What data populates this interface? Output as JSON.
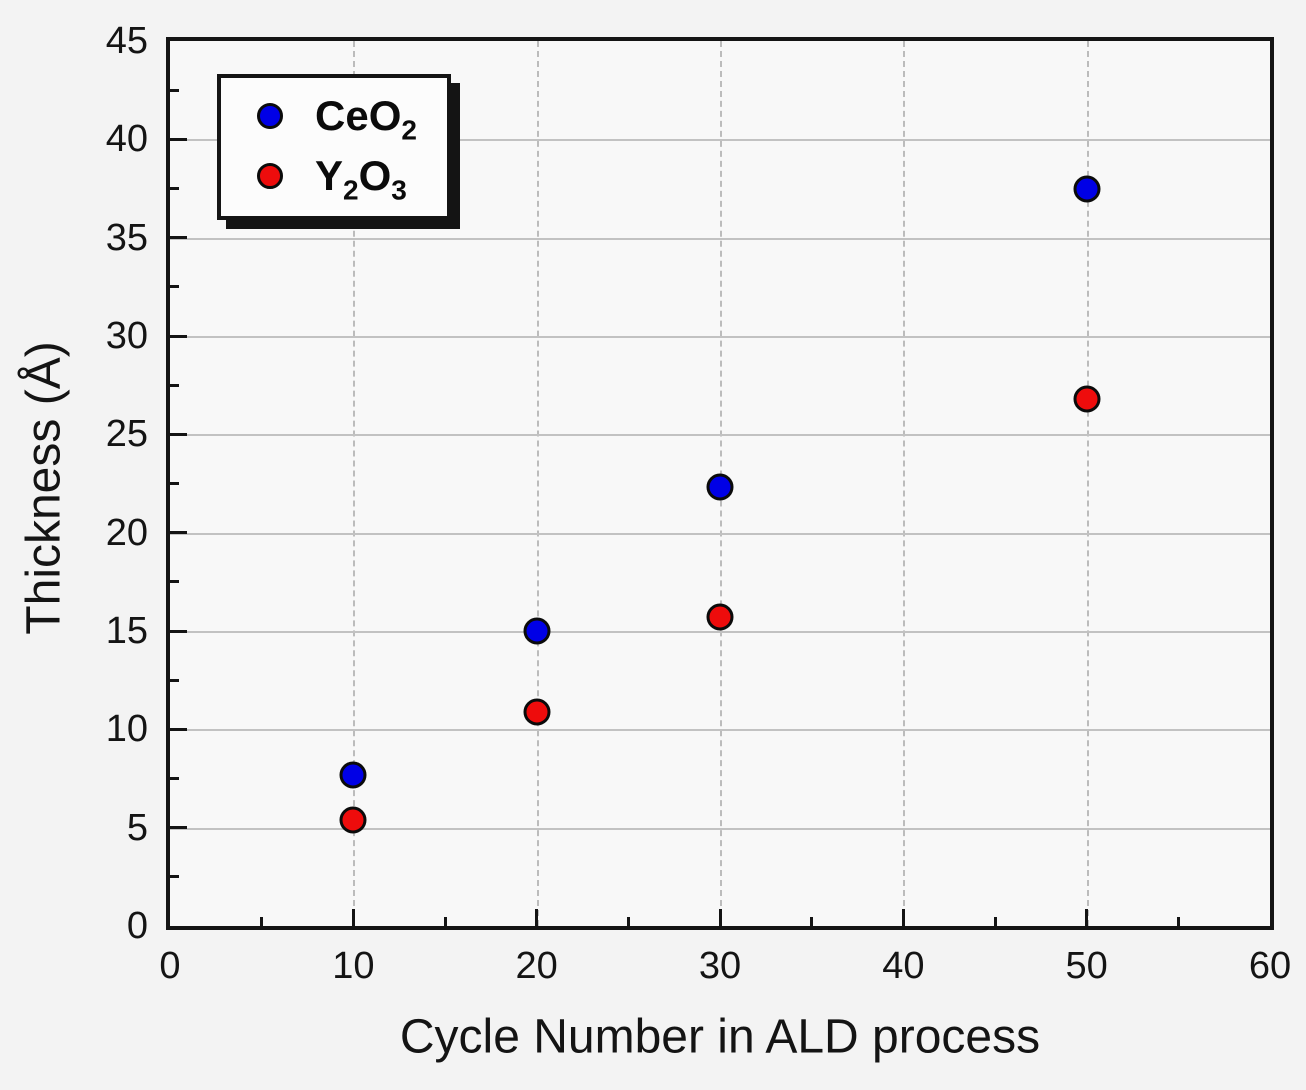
{
  "chart_data": {
    "type": "scatter",
    "title": "",
    "xlabel": "Cycle Number in ALD process",
    "ylabel": "Thickness (Å)",
    "xlim": [
      0,
      60
    ],
    "ylim": [
      0,
      45
    ],
    "x_major_step": 10,
    "x_minor_step": 5,
    "y_major_step": 5,
    "y_minor_step": 2.5,
    "grid": {
      "vertical_style": "dashed",
      "horizontal_style": "solid",
      "color": "#bcbcbc"
    },
    "legend": {
      "position": "top-left",
      "background": "#fcfcfc",
      "border_color": "#141414",
      "drop_shadow": true
    },
    "axis_color": "#141414",
    "series": [
      {
        "name": "CeO2",
        "label_parts": [
          {
            "text": "CeO"
          },
          {
            "sub": "2"
          }
        ],
        "marker": "circle",
        "color": "#0000e6",
        "x": [
          10,
          20,
          30,
          50
        ],
        "y": [
          7.7,
          15.0,
          22.3,
          37.5
        ]
      },
      {
        "name": "Y2O3",
        "label_parts": [
          {
            "text": "Y"
          },
          {
            "sub": "2"
          },
          {
            "text": "O"
          },
          {
            "sub": "3"
          }
        ],
        "marker": "circle",
        "color": "#ee0c0c",
        "x": [
          10,
          20,
          30,
          50
        ],
        "y": [
          5.4,
          10.9,
          15.7,
          26.8
        ]
      }
    ]
  }
}
